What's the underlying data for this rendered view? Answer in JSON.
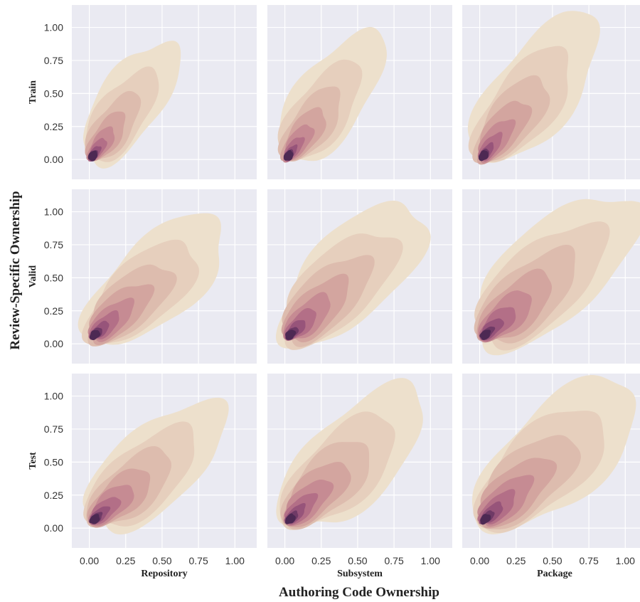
{
  "chart_data": {
    "type": "kde_contour_grid",
    "xlabel": "Authoring Code Ownership",
    "ylabel": "Review-Specific Ownership",
    "rows": [
      "Train",
      "Valid",
      "Test"
    ],
    "columns": [
      "Repository",
      "Subsystem",
      "Package"
    ],
    "xlim": [
      -0.12,
      1.15
    ],
    "ylim": [
      -0.15,
      1.17
    ],
    "xticks": [
      "0.00",
      "0.25",
      "0.50",
      "0.75",
      "1.00"
    ],
    "yticks": [
      "0.00",
      "0.25",
      "0.50",
      "0.75",
      "1.00"
    ],
    "xtick_values": [
      0,
      0.25,
      0.5,
      0.75,
      1.0
    ],
    "ytick_values": [
      0,
      0.25,
      0.5,
      0.75,
      1.0
    ],
    "grid": true,
    "colormap": [
      "#ede0cc",
      "#e6cfbd",
      "#ddbcae",
      "#d3a59f",
      "#c68b93",
      "#b36f87",
      "#97547a",
      "#6f3a66",
      "#4d2953"
    ],
    "panels": [
      {
        "row": "Train",
        "column": "Repository",
        "mode_x": 0.02,
        "mode_y": 0.02,
        "extent_x": 0.55,
        "extent_y": 0.85,
        "spread": 0.28
      },
      {
        "row": "Train",
        "column": "Subsystem",
        "mode_x": 0.02,
        "mode_y": 0.02,
        "extent_x": 0.62,
        "extent_y": 0.92,
        "spread": 0.3
      },
      {
        "row": "Train",
        "column": "Package",
        "mode_x": 0.02,
        "mode_y": 0.02,
        "extent_x": 0.75,
        "extent_y": 1.05,
        "spread": 0.35
      },
      {
        "row": "Valid",
        "column": "Repository",
        "mode_x": 0.03,
        "mode_y": 0.06,
        "extent_x": 0.88,
        "extent_y": 0.9,
        "spread": 0.55
      },
      {
        "row": "Valid",
        "column": "Subsystem",
        "mode_x": 0.03,
        "mode_y": 0.06,
        "extent_x": 0.9,
        "extent_y": 1.0,
        "spread": 0.58
      },
      {
        "row": "Valid",
        "column": "Package",
        "mode_x": 0.03,
        "mode_y": 0.06,
        "extent_x": 1.02,
        "extent_y": 1.05,
        "spread": 0.62
      },
      {
        "row": "Test",
        "column": "Repository",
        "mode_x": 0.03,
        "mode_y": 0.06,
        "extent_x": 0.88,
        "extent_y": 0.88,
        "spread": 0.55
      },
      {
        "row": "Test",
        "column": "Subsystem",
        "mode_x": 0.03,
        "mode_y": 0.06,
        "extent_x": 0.9,
        "extent_y": 1.0,
        "spread": 0.58
      },
      {
        "row": "Test",
        "column": "Package",
        "mode_x": 0.03,
        "mode_y": 0.06,
        "extent_x": 1.02,
        "extent_y": 1.05,
        "spread": 0.62
      }
    ]
  }
}
